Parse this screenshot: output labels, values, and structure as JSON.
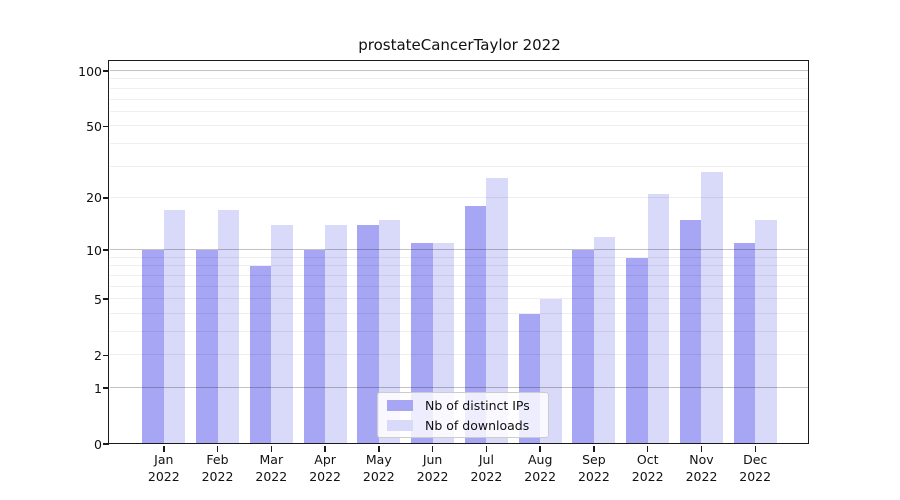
{
  "title": "prostateCancerTaylor 2022",
  "chart_data": {
    "type": "bar",
    "title": "prostateCancerTaylor 2022",
    "categories": [
      "Jan 2022",
      "Feb 2022",
      "Mar 2022",
      "Apr 2022",
      "May 2022",
      "Jun 2022",
      "Jul 2022",
      "Aug 2022",
      "Sep 2022",
      "Oct 2022",
      "Nov 2022",
      "Dec 2022"
    ],
    "series": [
      {
        "name": "Nb of distinct IPs",
        "color": "#a6a6f4",
        "values": [
          10,
          10,
          8,
          10,
          14,
          11,
          18,
          4,
          10,
          9,
          15,
          11
        ]
      },
      {
        "name": "Nb of downloads",
        "color": "#d9d9f9",
        "values": [
          17,
          17,
          14,
          14,
          15,
          11,
          26,
          5,
          12,
          21,
          28,
          15
        ]
      }
    ],
    "yscale": "log1p",
    "ylim": [
      0,
      112
    ],
    "yticks": [
      0,
      1,
      2,
      5,
      10,
      20,
      50,
      100
    ],
    "major_gridlines": [
      1,
      10,
      100
    ],
    "minor_gridlines": [
      2,
      3,
      4,
      5,
      6,
      7,
      8,
      9,
      20,
      30,
      40,
      50,
      60,
      70,
      80,
      90
    ],
    "grid": true,
    "legend_position": "lower center"
  }
}
